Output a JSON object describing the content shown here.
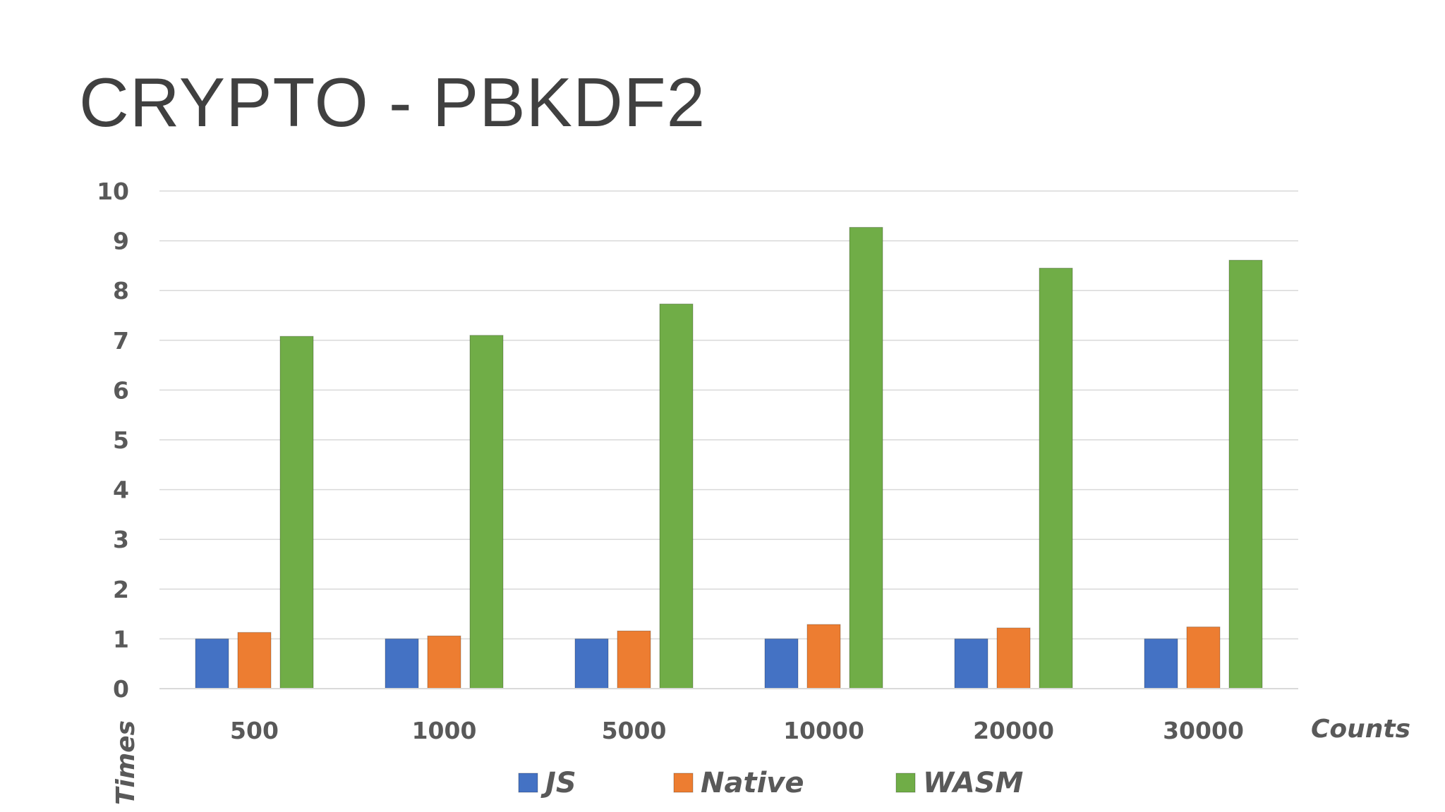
{
  "title": "CRYPTO - PBKDF2",
  "chart_data": {
    "type": "bar",
    "title": "",
    "xlabel": "Counts",
    "ylabel": "Times",
    "ylim": [
      0,
      10
    ],
    "yticks": [
      0,
      1,
      2,
      3,
      4,
      5,
      6,
      7,
      8,
      9,
      10
    ],
    "grid": true,
    "legend_position": "bottom",
    "categories": [
      "500",
      "1000",
      "5000",
      "10000",
      "20000",
      "30000"
    ],
    "series": [
      {
        "name": "JS",
        "color": "#4472C4",
        "values": [
          1,
          1,
          1,
          1,
          1,
          1
        ]
      },
      {
        "name": "Native",
        "color": "#ED7D31",
        "values": [
          1.13,
          1.06,
          1.16,
          1.29,
          1.22,
          1.24
        ]
      },
      {
        "name": "WASM",
        "color": "#70AD47",
        "values": [
          7.08,
          7.1,
          7.73,
          9.27,
          8.45,
          8.61
        ]
      }
    ]
  }
}
